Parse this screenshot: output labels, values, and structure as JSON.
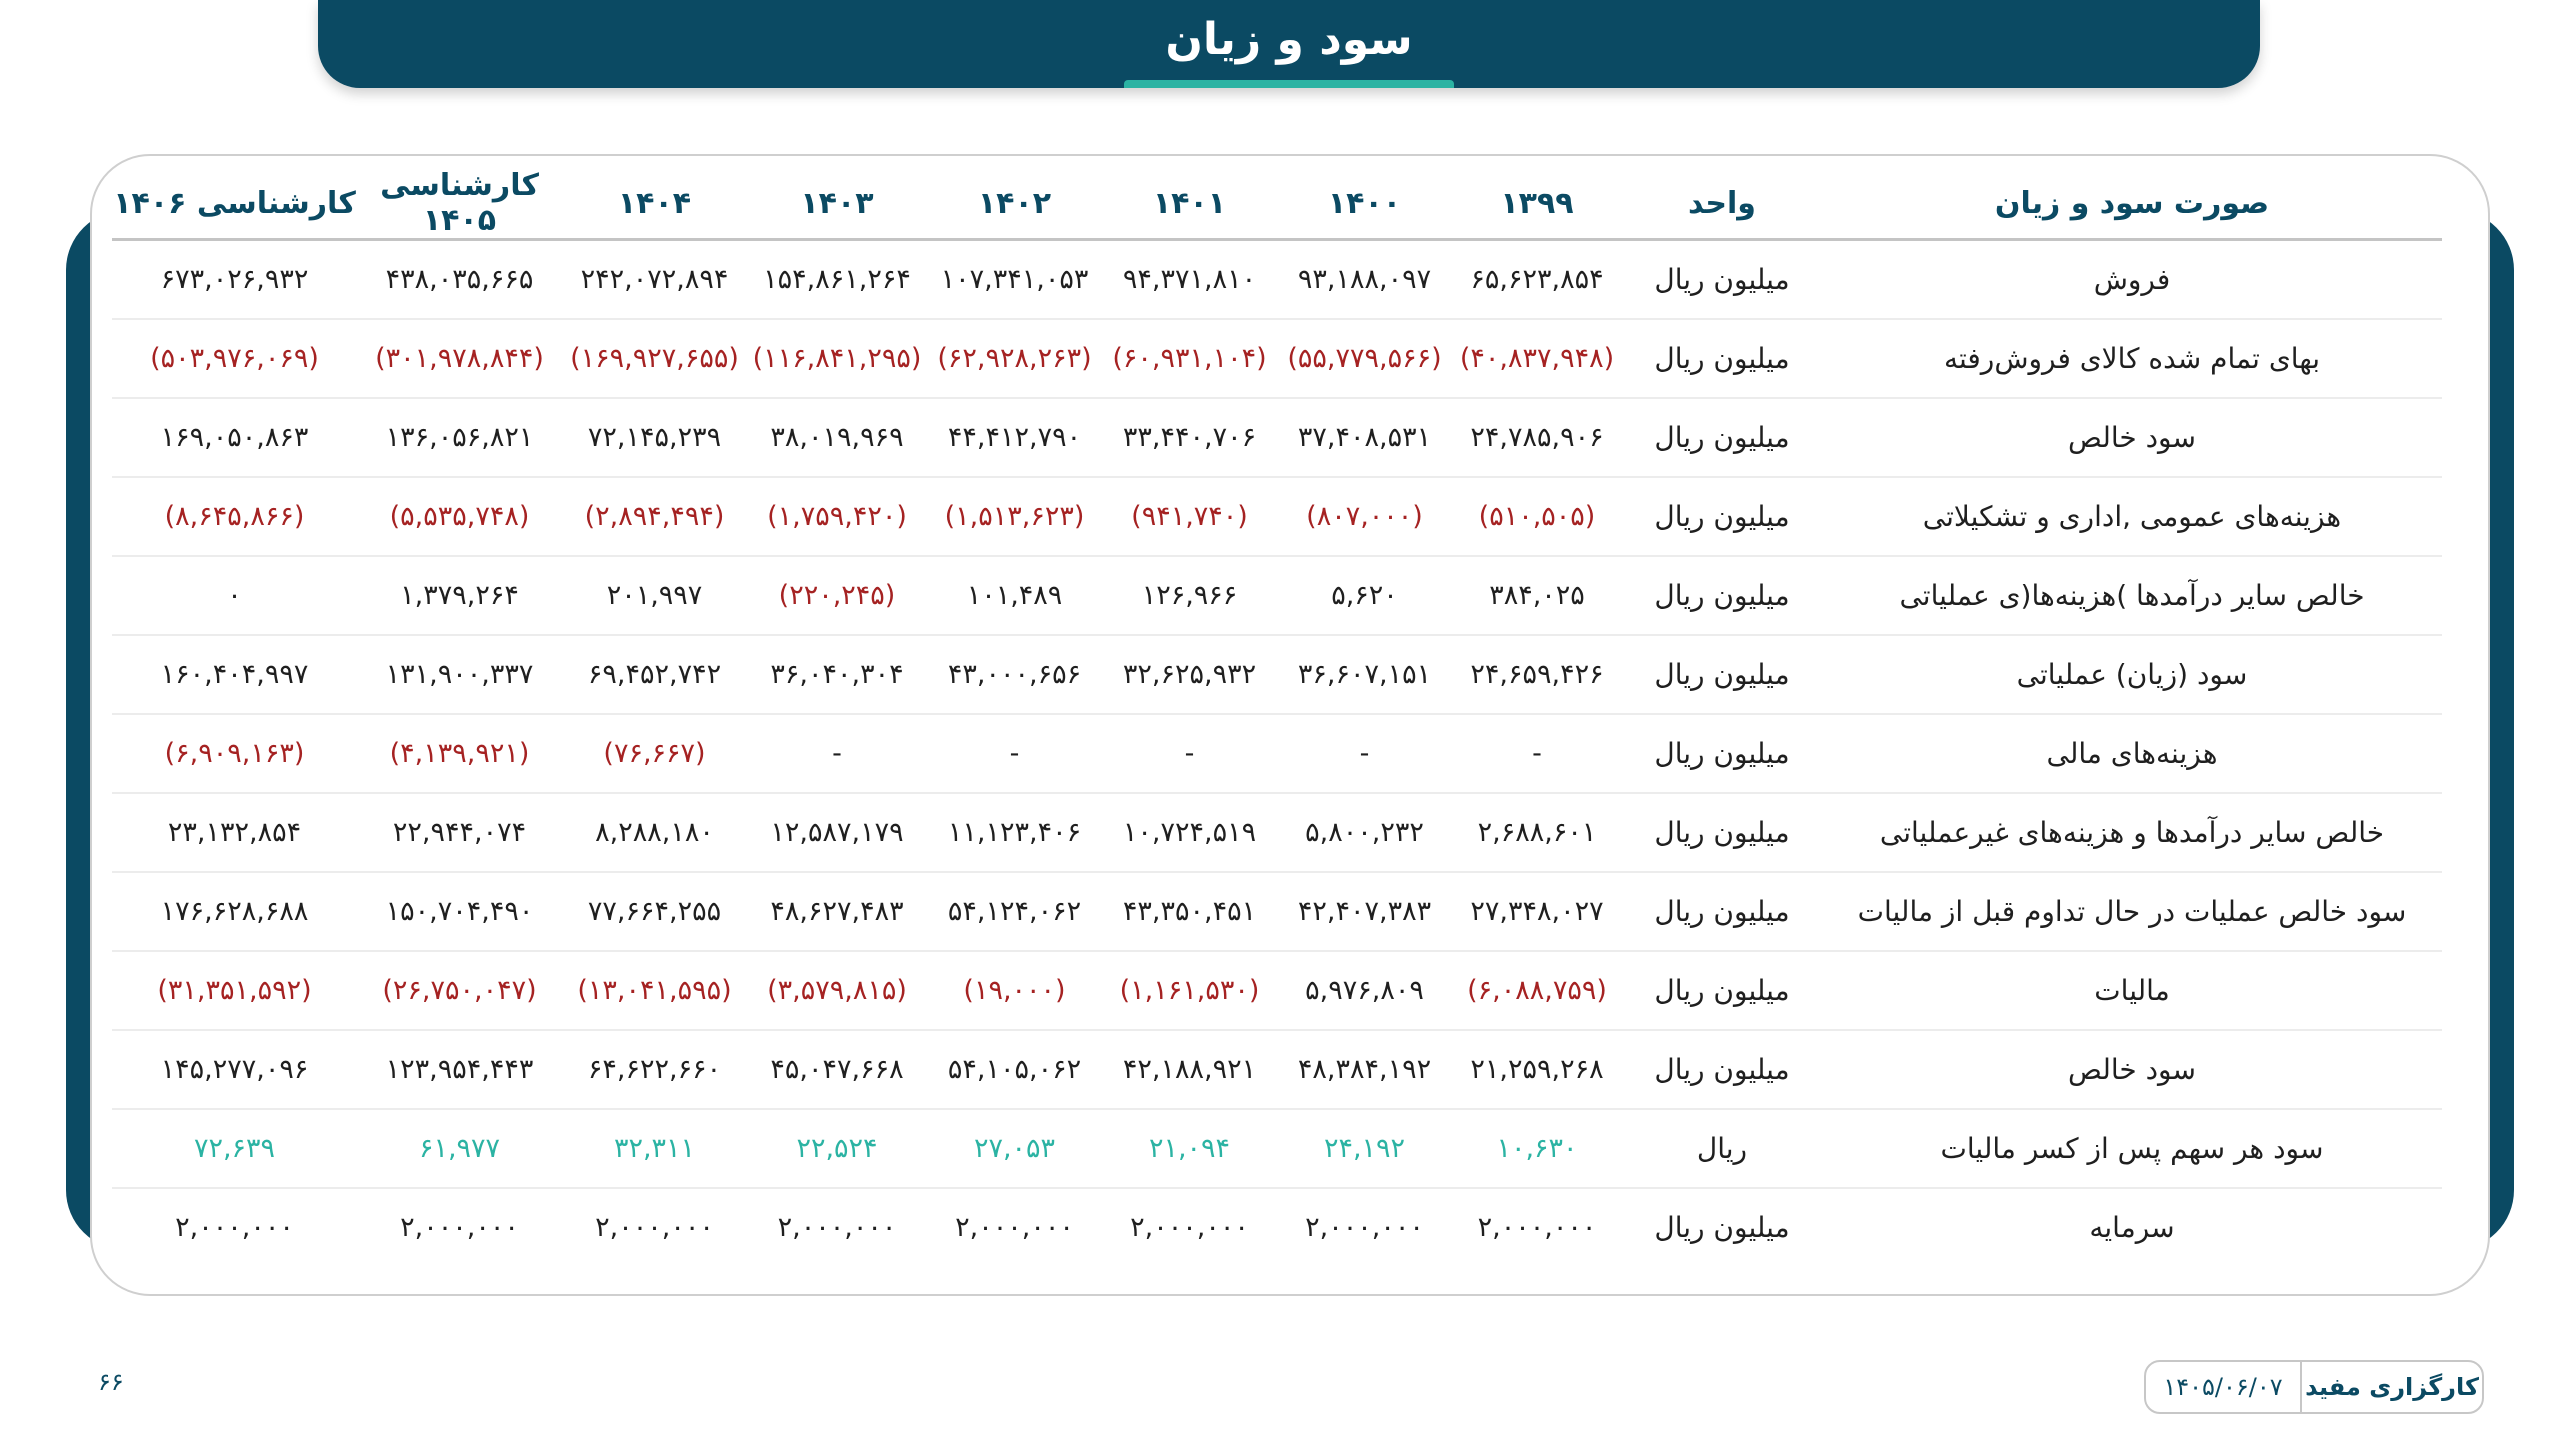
{
  "header": {
    "title": "سود و زیان"
  },
  "table": {
    "columns": [
      "صورت سود و زیان",
      "واحد",
      "۱۳۹۹",
      "۱۴۰۰",
      "۱۴۰۱",
      "۱۴۰۲",
      "۱۴۰۳",
      "۱۴۰۴",
      "کارشناسی ۱۴۰۵",
      "کارشناسی ۱۴۰۶"
    ],
    "rows": [
      {
        "label": "فروش",
        "unit": "میلیون ریال",
        "values": [
          "۶۵,۶۲۳,۸۵۴",
          "۹۳,۱۸۸,۰۹۷",
          "۹۴,۳۷۱,۸۱۰",
          "۱۰۷,۳۴۱,۰۵۳",
          "۱۵۴,۸۶۱,۲۶۴",
          "۲۴۲,۰۷۲,۸۹۴",
          "۴۳۸,۰۳۵,۶۶۵",
          "۶۷۳,۰۲۶,۹۳۲"
        ]
      },
      {
        "label": "بهای تمام شده کالای فروش‌رفته",
        "unit": "میلیون ریال",
        "values": [
          "(۴۰,۸۳۷,۹۴۸)",
          "(۵۵,۷۷۹,۵۶۶)",
          "(۶۰,۹۳۱,۱۰۴)",
          "(۶۲,۹۲۸,۲۶۳)",
          "(۱۱۶,۸۴۱,۲۹۵)",
          "(۱۶۹,۹۲۷,۶۵۵)",
          "(۳۰۱,۹۷۸,۸۴۴)",
          "(۵۰۳,۹۷۶,۰۶۹)"
        ]
      },
      {
        "label": "سود خالص",
        "unit": "میلیون ریال",
        "values": [
          "۲۴,۷۸۵,۹۰۶",
          "۳۷,۴۰۸,۵۳۱",
          "۳۳,۴۴۰,۷۰۶",
          "۴۴,۴۱۲,۷۹۰",
          "۳۸,۰۱۹,۹۶۹",
          "۷۲,۱۴۵,۲۳۹",
          "۱۳۶,۰۵۶,۸۲۱",
          "۱۶۹,۰۵۰,۸۶۳"
        ]
      },
      {
        "label": "هزینه‌های عمومی ,اداری و تشکیلاتی",
        "unit": "میلیون ریال",
        "values": [
          "(۵۱۰,۵۰۵)",
          "(۸۰۷,۰۰۰)",
          "(۹۴۱,۷۴۰)",
          "(۱,۵۱۳,۶۲۳)",
          "(۱,۷۵۹,۴۲۰)",
          "(۲,۸۹۴,۴۹۴)",
          "(۵,۵۳۵,۷۴۸)",
          "(۸,۶۴۵,۸۶۶)"
        ]
      },
      {
        "label": "خالص سایر درآمدها )هزینه‌ها(ی عملیاتی",
        "unit": "میلیون ریال",
        "values": [
          "۳۸۴,۰۲۵",
          "۵,۶۲۰",
          "۱۲۶,۹۶۶",
          "۱۰۱,۴۸۹",
          "(۲۲۰,۲۴۵)",
          "۲۰۱,۹۹۷",
          "۱,۳۷۹,۲۶۴",
          "۰"
        ]
      },
      {
        "label": "سود (زیان) عملیاتی",
        "unit": "میلیون ریال",
        "values": [
          "۲۴,۶۵۹,۴۲۶",
          "۳۶,۶۰۷,۱۵۱",
          "۳۲,۶۲۵,۹۳۲",
          "۴۳,۰۰۰,۶۵۶",
          "۳۶,۰۴۰,۳۰۴",
          "۶۹,۴۵۲,۷۴۲",
          "۱۳۱,۹۰۰,۳۳۷",
          "۱۶۰,۴۰۴,۹۹۷"
        ]
      },
      {
        "label": "هزینه‌های مالی",
        "unit": "میلیون ریال",
        "values": [
          "-",
          "-",
          "-",
          "-",
          "-",
          "(۷۶,۶۶۷)",
          "(۴,۱۳۹,۹۲۱)",
          "(۶,۹۰۹,۱۶۳)"
        ]
      },
      {
        "label": "خالص سایر درآمدها و هزینه‌های غیرعملیاتی",
        "unit": "میلیون ریال",
        "values": [
          "۲,۶۸۸,۶۰۱",
          "۵,۸۰۰,۲۳۲",
          "۱۰,۷۲۴,۵۱۹",
          "۱۱,۱۲۳,۴۰۶",
          "۱۲,۵۸۷,۱۷۹",
          "۸,۲۸۸,۱۸۰",
          "۲۲,۹۴۴,۰۷۴",
          "۲۳,۱۳۲,۸۵۴"
        ]
      },
      {
        "label": "سود خالص عملیات در حال تداوم قبل از مالیات",
        "unit": "میلیون ریال",
        "values": [
          "۲۷,۳۴۸,۰۲۷",
          "۴۲,۴۰۷,۳۸۳",
          "۴۳,۳۵۰,۴۵۱",
          "۵۴,۱۲۴,۰۶۲",
          "۴۸,۶۲۷,۴۸۳",
          "۷۷,۶۶۴,۲۵۵",
          "۱۵۰,۷۰۴,۴۹۰",
          "۱۷۶,۶۲۸,۶۸۸"
        ]
      },
      {
        "label": "مالیات",
        "unit": "میلیون ریال",
        "values": [
          "(۶,۰۸۸,۷۵۹)",
          "۵,۹۷۶,۸۰۹",
          "(۱,۱۶۱,۵۳۰)",
          "(۱۹,۰۰۰)",
          "(۳,۵۷۹,۸۱۵)",
          "(۱۳,۰۴۱,۵۹۵)",
          "(۲۶,۷۵۰,۰۴۷)",
          "(۳۱,۳۵۱,۵۹۲)"
        ]
      },
      {
        "label": "سود خالص",
        "unit": "میلیون ریال",
        "values": [
          "۲۱,۲۵۹,۲۶۸",
          "۴۸,۳۸۴,۱۹۲",
          "۴۲,۱۸۸,۹۲۱",
          "۵۴,۱۰۵,۰۶۲",
          "۴۵,۰۴۷,۶۶۸",
          "۶۴,۶۲۲,۶۶۰",
          "۱۲۳,۹۵۴,۴۴۳",
          "۱۴۵,۲۷۷,۰۹۶"
        ]
      },
      {
        "label": "سود هر سهم پس از کسر مالیات",
        "unit": "ریال",
        "values": [
          "۱۰,۶۳۰",
          "۲۴,۱۹۲",
          "۲۱,۰۹۴",
          "۲۷,۰۵۳",
          "۲۲,۵۲۴",
          "۳۲,۳۱۱",
          "۶۱,۹۷۷",
          "۷۲,۶۳۹"
        ]
      },
      {
        "label": "سرمایه",
        "unit": "میلیون ریال",
        "values": [
          "۲,۰۰۰,۰۰۰",
          "۲,۰۰۰,۰۰۰",
          "۲,۰۰۰,۰۰۰",
          "۲,۰۰۰,۰۰۰",
          "۲,۰۰۰,۰۰۰",
          "۲,۰۰۰,۰۰۰",
          "۲,۰۰۰,۰۰۰",
          "۲,۰۰۰,۰۰۰"
        ]
      }
    ]
  },
  "footer": {
    "page_number": "۶۶",
    "brand": "کارگزاری مفید",
    "date": "۱۴۰۵/۰۶/۰۷"
  },
  "colors": {
    "primary": "#0b4a63",
    "accent": "#2bb3a3",
    "negative": "#a52222"
  }
}
